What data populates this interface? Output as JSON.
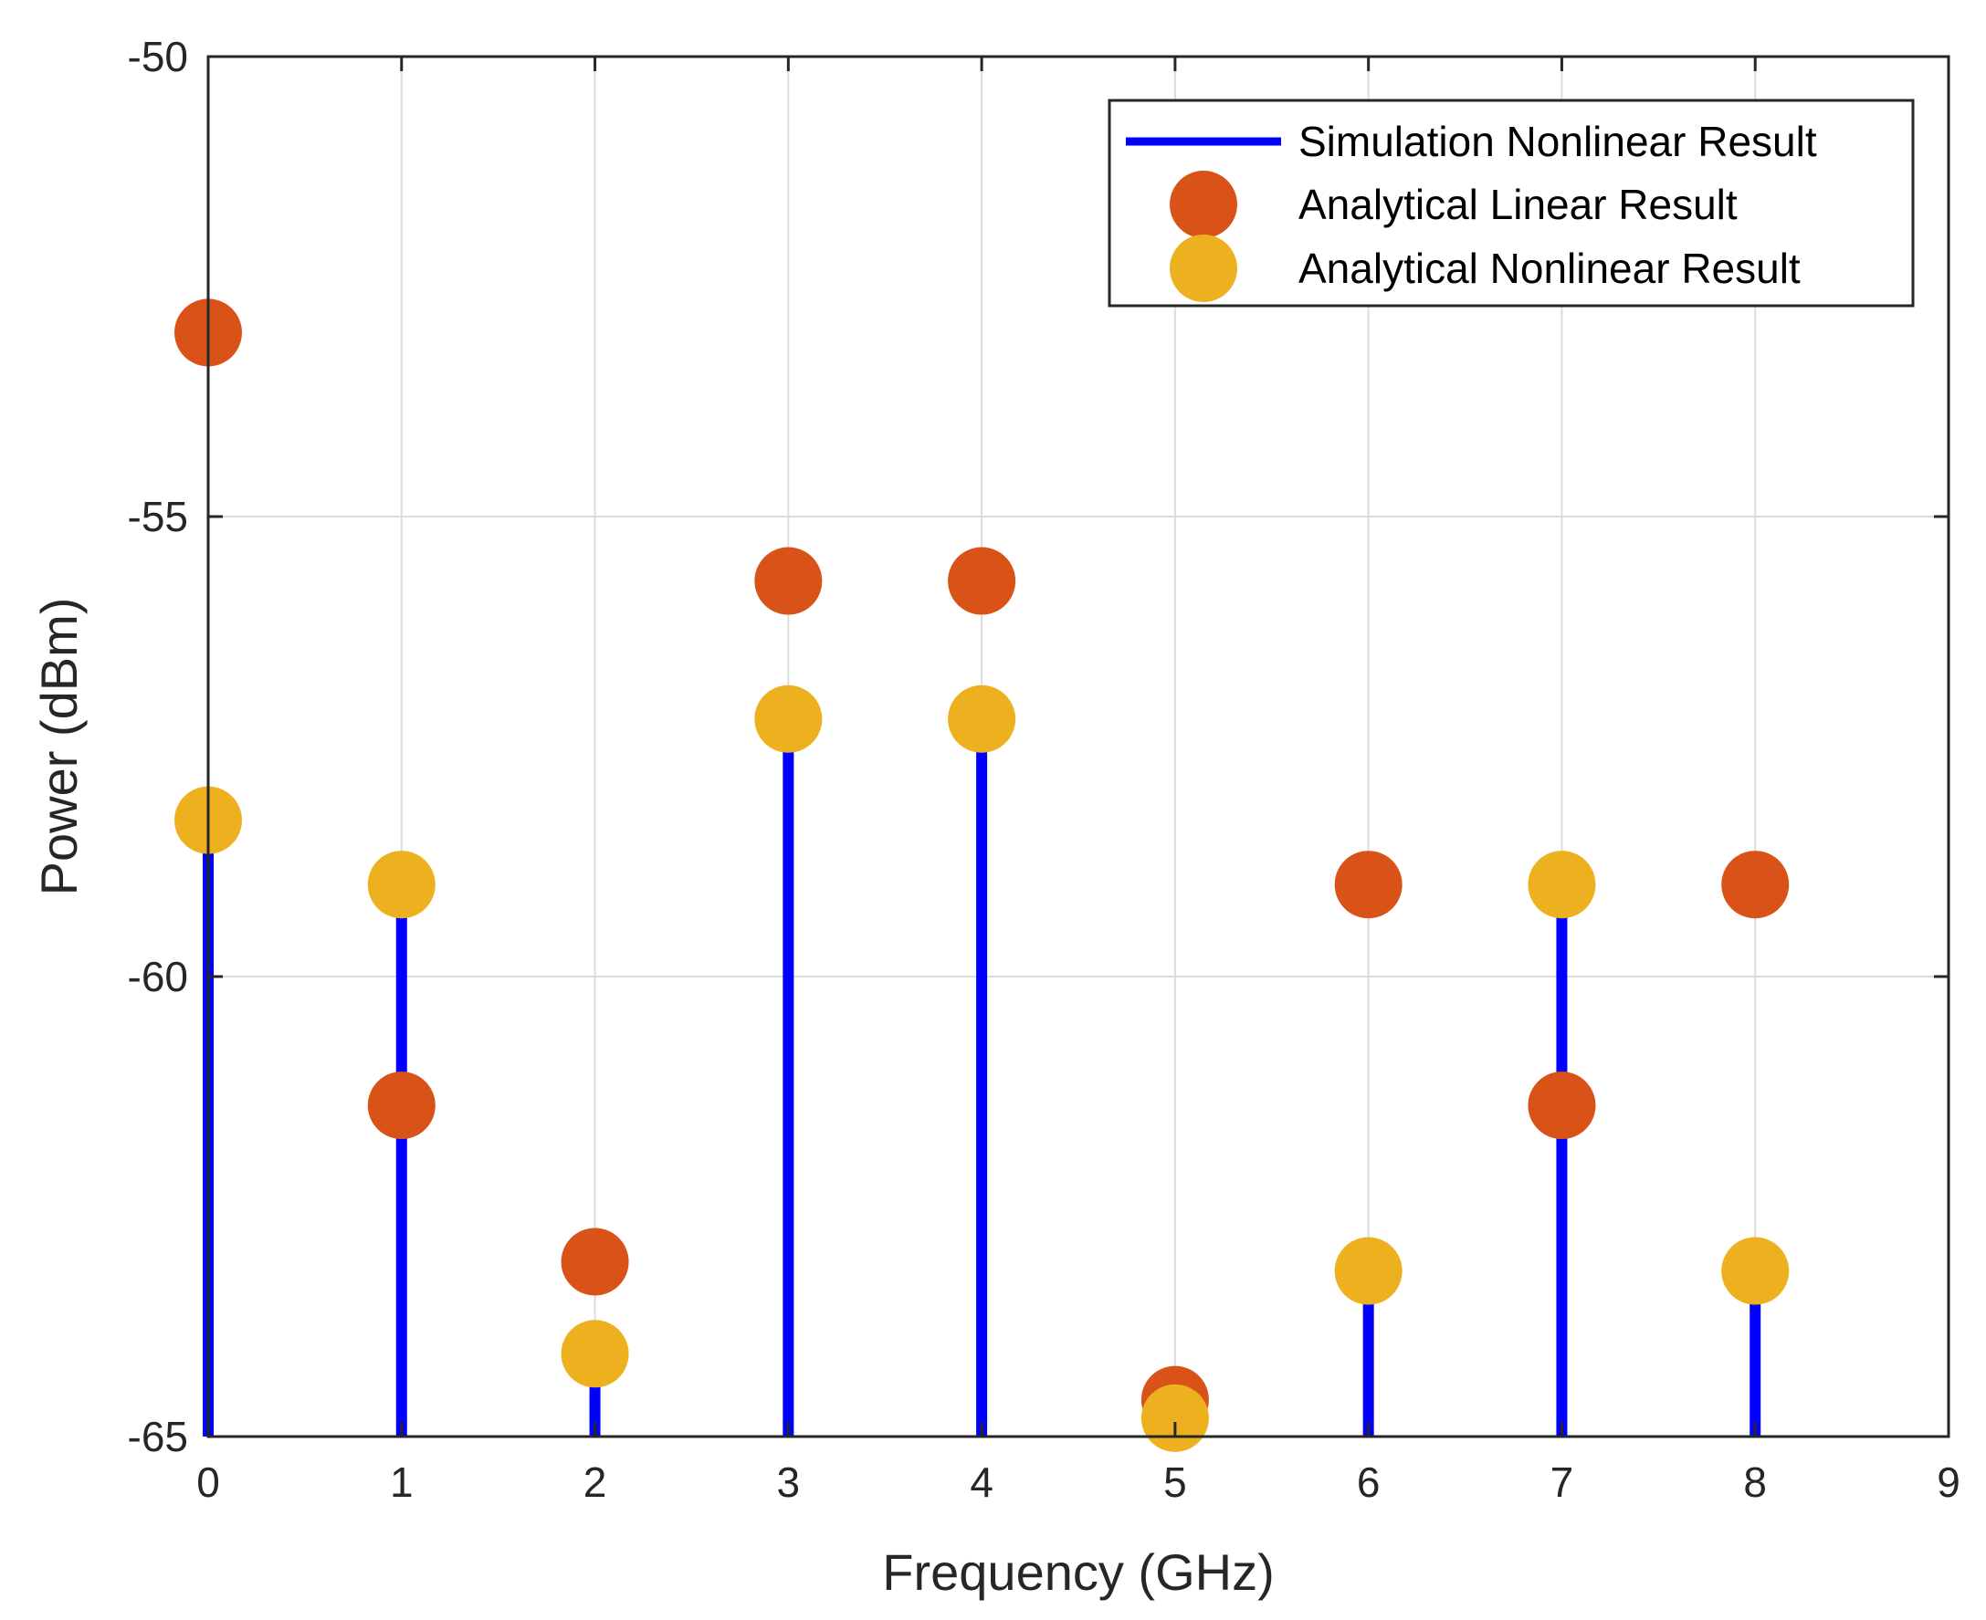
{
  "chart_data": {
    "type": "scatter",
    "title": "",
    "xlabel": "Frequency (GHz)",
    "ylabel": "Power (dBm)",
    "xlim": [
      0,
      9
    ],
    "ylim": [
      -65,
      -50
    ],
    "xticks": [
      "0",
      "1",
      "2",
      "3",
      "4",
      "5",
      "6",
      "7",
      "8",
      "9"
    ],
    "yticks": [
      "-50",
      "-55",
      "-60",
      "-65"
    ],
    "grid": true,
    "legend_position": "top-right",
    "x": [
      0,
      1,
      2,
      3,
      4,
      5,
      6,
      7,
      8
    ],
    "series": [
      {
        "name": "Simulation Nonlinear Result",
        "kind": "stem",
        "color": "#0000ff",
        "values": [
          -58.4,
          -59.1,
          -64.0,
          -57.3,
          -57.3,
          -65.0,
          -63.2,
          -59.1,
          -63.2
        ]
      },
      {
        "name": "Analytical Linear Result",
        "kind": "marker",
        "color": "#d95319",
        "values": [
          -53.0,
          -61.4,
          -63.1,
          -55.7,
          -55.7,
          -64.6,
          -59.0,
          -61.4,
          -59.0
        ]
      },
      {
        "name": "Analytical Nonlinear Result",
        "kind": "marker",
        "color": "#edb120",
        "values": [
          -58.3,
          -59.0,
          -64.1,
          -57.2,
          -57.2,
          -64.8,
          -63.2,
          -59.0,
          -63.2
        ]
      }
    ]
  }
}
